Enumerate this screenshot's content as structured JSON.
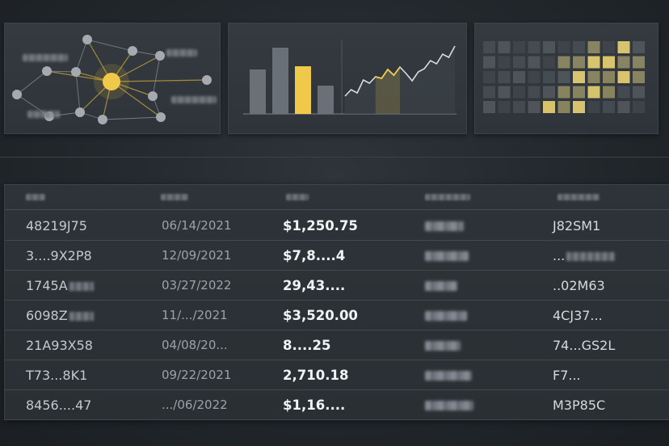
{
  "colors": {
    "accent": "#f0c94a",
    "panel": "#31373c",
    "node": "#a5aab0",
    "bar": "#6a7077"
  },
  "panels": {
    "network": {
      "icon": "network-graph-icon"
    },
    "bar_line": {
      "bars": [
        {
          "value": 0.55,
          "highlight": false
        },
        {
          "value": 0.82,
          "highlight": false
        },
        {
          "value": 0.59,
          "highlight": true
        },
        {
          "value": 0.35,
          "highlight": false
        }
      ],
      "line": [
        0.22,
        0.3,
        0.26,
        0.42,
        0.38,
        0.46,
        0.44,
        0.55,
        0.48,
        0.58,
        0.5,
        0.41,
        0.52,
        0.56,
        0.66,
        0.62,
        0.74,
        0.7,
        0.84
      ]
    },
    "heatmap": {
      "cells": [
        [
          0,
          0,
          0,
          0,
          0,
          0,
          0,
          1,
          0,
          2,
          0
        ],
        [
          0,
          0,
          0,
          0,
          0,
          1,
          1,
          2,
          2,
          1,
          1
        ],
        [
          0,
          0,
          0,
          0,
          0,
          0,
          2,
          1,
          1,
          2,
          1
        ],
        [
          0,
          0,
          0,
          0,
          0,
          1,
          1,
          2,
          1,
          0,
          0
        ],
        [
          0,
          0,
          0,
          0,
          2,
          1,
          2,
          0,
          0,
          0,
          0
        ]
      ]
    }
  },
  "table": {
    "rows": [
      {
        "id": "48219J75",
        "id_blur": false,
        "date": "06/14/2021",
        "amount": "$1,250.75",
        "code": "J82SM1",
        "code_blur": false
      },
      {
        "id": "3....9X2P8",
        "id_blur": false,
        "date": "12/09/2021",
        "amount": "$7,8....4",
        "code": "...",
        "code_blur": true
      },
      {
        "id": "1745A",
        "id_blur": true,
        "date": "03/27/2022",
        "amount": "29,43....",
        "code": "..02M63",
        "code_blur": false
      },
      {
        "id": "6098Z",
        "id_blur": true,
        "date": "11/.../2021",
        "amount": "$3,520.00",
        "code": "4CJ37...",
        "code_blur": false
      },
      {
        "id": "21A93X58",
        "id_blur": false,
        "date": "04/08/20...",
        "amount": "8....25",
        "code": "74...GS2L",
        "code_blur": false
      },
      {
        "id": "T73...8K1",
        "id_blur": false,
        "date": "09/22/2021",
        "amount": "2,710.18",
        "code": "F7...",
        "code_blur": false
      },
      {
        "id": "8456....47",
        "id_blur": false,
        "date": ".../06/2022",
        "amount": "$1,16....",
        "code": "M3P85C",
        "code_blur": false
      }
    ]
  }
}
